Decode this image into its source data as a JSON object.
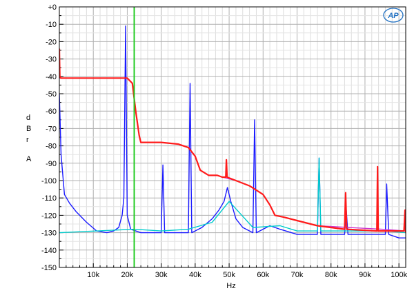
{
  "chart_data": {
    "type": "line",
    "title": "",
    "xlabel": "Hz",
    "ylabel_letters": [
      "d",
      "B",
      "r",
      "A"
    ],
    "xlim": [
      0,
      102000
    ],
    "ylim": [
      -150,
      0
    ],
    "grid": true,
    "legend": "none",
    "x_ticks": [
      {
        "value": 10000,
        "label": "10k"
      },
      {
        "value": 20000,
        "label": "20k"
      },
      {
        "value": 30000,
        "label": "30k"
      },
      {
        "value": 40000,
        "label": "40k"
      },
      {
        "value": 50000,
        "label": "50k"
      },
      {
        "value": 60000,
        "label": "60k"
      },
      {
        "value": 70000,
        "label": "70k"
      },
      {
        "value": 80000,
        "label": "80k"
      },
      {
        "value": 90000,
        "label": "90k"
      },
      {
        "value": 100000,
        "label": "100k"
      }
    ],
    "y_ticks": [
      {
        "value": 0,
        "label": "+0"
      },
      {
        "value": -10,
        "label": "-10"
      },
      {
        "value": -20,
        "label": "-20"
      },
      {
        "value": -30,
        "label": "-30"
      },
      {
        "value": -40,
        "label": "-40"
      },
      {
        "value": -50,
        "label": "-50"
      },
      {
        "value": -60,
        "label": "-60"
      },
      {
        "value": -70,
        "label": "-70"
      },
      {
        "value": -80,
        "label": "-80"
      },
      {
        "value": -90,
        "label": "-90"
      },
      {
        "value": -100,
        "label": "-100"
      },
      {
        "value": -110,
        "label": "-110"
      },
      {
        "value": -120,
        "label": "-120"
      },
      {
        "value": -130,
        "label": "-130"
      },
      {
        "value": -140,
        "label": "-140"
      },
      {
        "value": -150,
        "label": "-150"
      }
    ],
    "marker_line": {
      "x": 22050,
      "color": "#22cc22"
    },
    "series": [
      {
        "color": "#1a1aff",
        "x": [
          0,
          500,
          1500,
          3000,
          5000,
          8000,
          11000,
          14000,
          16000,
          17500,
          18500,
          19000,
          19500,
          20000,
          21000,
          24000,
          30000,
          30500,
          31000,
          38000,
          38500,
          39000,
          42000,
          45000,
          47000,
          48500,
          49500,
          50500,
          52000,
          54000,
          57000,
          57500,
          58000,
          62000,
          65000,
          70000,
          76000,
          76500,
          77000,
          84000,
          84500,
          85000,
          96000,
          96400,
          97000,
          100000,
          102000
        ],
        "y": [
          -50,
          -85,
          -108,
          -113,
          -118,
          -124,
          -129,
          -130,
          -129,
          -127,
          -120,
          -110,
          -11,
          -120,
          -128,
          -130,
          -130,
          -91,
          -130,
          -130,
          -44,
          -130,
          -127,
          -122,
          -117,
          -112,
          -104,
          -112,
          -122,
          -127,
          -130,
          -65,
          -130,
          -126,
          -128,
          -131,
          -131,
          -87,
          -131,
          -131,
          -117,
          -131,
          -131,
          -102,
          -131,
          -133,
          -133
        ]
      },
      {
        "color": "#00cccc",
        "x": [
          0,
          22000,
          30000,
          38000,
          45000,
          50000,
          57000,
          65000,
          70000,
          76000,
          76500,
          77000,
          85000,
          96000,
          102000
        ],
        "y": [
          -130,
          -128,
          -129,
          -128,
          -124,
          -112,
          -127,
          -126,
          -129,
          -129,
          -87,
          -129,
          -129,
          -129,
          -130
        ]
      },
      {
        "color": "#cc33cc",
        "x": [
          0,
          20000,
          21500,
          22500,
          23500,
          24000,
          30000,
          35000,
          38000,
          40000,
          41500,
          44000,
          46500,
          48000,
          52000,
          56000,
          60000,
          62000,
          63500,
          66000,
          70000,
          76000,
          85000,
          95000,
          102000
        ],
        "y": [
          -41,
          -41,
          -44,
          -60,
          -74,
          -78,
          -78,
          -79,
          -81,
          -86,
          -94,
          -97,
          -97,
          -98,
          -100,
          -103,
          -108,
          -114,
          -120,
          -121,
          -123,
          -126,
          -127,
          -128,
          -129
        ]
      },
      {
        "color": "#ff1a1a",
        "x": [
          0,
          150,
          400,
          20000,
          21500,
          22500,
          23500,
          24000,
          30000,
          35000,
          38000,
          40000,
          41500,
          44000,
          46500,
          48000,
          49000,
          49200,
          49400,
          52000,
          56000,
          60000,
          62000,
          63500,
          66000,
          70000,
          76000,
          84000,
          84300,
          84600,
          93500,
          93700,
          93900,
          101500,
          101800,
          102000
        ],
        "y": [
          -24,
          -40,
          -41,
          -41,
          -44,
          -60,
          -74,
          -78,
          -78,
          -79,
          -81,
          -86,
          -94,
          -97,
          -97,
          -98,
          -98,
          -88,
          -98,
          -100,
          -103,
          -108,
          -114,
          -120,
          -121,
          -123,
          -126,
          -128,
          -107,
          -128,
          -129,
          -92,
          -129,
          -129,
          -117,
          -130
        ]
      }
    ]
  },
  "logo": {
    "text": "AP"
  }
}
